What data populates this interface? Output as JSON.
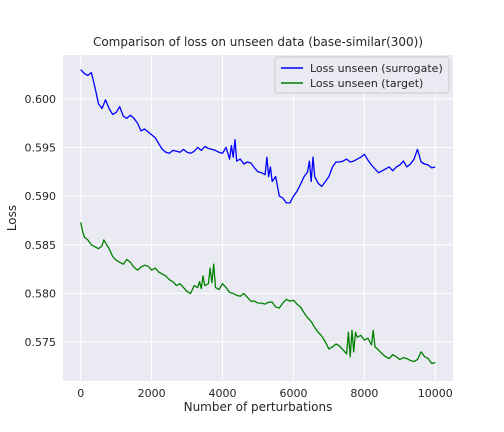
{
  "chart_data": {
    "type": "line",
    "title": "Comparison of loss on unseen data (base-similar(300))",
    "xlabel": "Number of perturbations",
    "ylabel": "Loss",
    "xlim": [
      -500,
      10500
    ],
    "ylim": [
      0.571,
      0.6045
    ],
    "xticks": [
      0,
      2000,
      4000,
      6000,
      8000,
      10000
    ],
    "xtick_labels": [
      "0",
      "2000",
      "4000",
      "6000",
      "8000",
      "10000"
    ],
    "yticks": [
      0.575,
      0.58,
      0.585,
      0.59,
      0.595,
      0.6
    ],
    "ytick_labels": [
      "0.575",
      "0.580",
      "0.585",
      "0.590",
      "0.595",
      "0.600"
    ],
    "grid": true,
    "background": "#eaeaf2",
    "legend_position": "top-right",
    "series": [
      {
        "name": "Loss unseen (surrogate)",
        "color": "#0000ff",
        "x": [
          0,
          100,
          200,
          300,
          400,
          500,
          600,
          700,
          800,
          900,
          1000,
          1100,
          1200,
          1300,
          1400,
          1500,
          1600,
          1700,
          1800,
          1900,
          2000,
          2100,
          2200,
          2300,
          2400,
          2500,
          2600,
          2700,
          2800,
          2900,
          3000,
          3100,
          3200,
          3300,
          3400,
          3500,
          3600,
          3700,
          3800,
          3900,
          4000,
          4100,
          4200,
          4250,
          4300,
          4350,
          4400,
          4500,
          4600,
          4700,
          4800,
          4900,
          5000,
          5100,
          5200,
          5250,
          5300,
          5350,
          5400,
          5500,
          5600,
          5700,
          5800,
          5900,
          6000,
          6100,
          6200,
          6300,
          6400,
          6450,
          6500,
          6550,
          6600,
          6700,
          6800,
          6900,
          7000,
          7100,
          7200,
          7300,
          7400,
          7500,
          7600,
          7700,
          7800,
          7900,
          8000,
          8100,
          8200,
          8300,
          8400,
          8500,
          8600,
          8700,
          8800,
          8900,
          9000,
          9100,
          9200,
          9300,
          9400,
          9500,
          9600,
          9700,
          9800,
          9900,
          10000
        ],
        "y": [
          0.603,
          0.6026,
          0.6024,
          0.6027,
          0.6012,
          0.5995,
          0.599,
          0.5999,
          0.599,
          0.5984,
          0.5986,
          0.5992,
          0.5982,
          0.598,
          0.5983,
          0.598,
          0.5975,
          0.5967,
          0.5969,
          0.5966,
          0.5963,
          0.596,
          0.5954,
          0.5948,
          0.5945,
          0.5944,
          0.5947,
          0.5946,
          0.5945,
          0.5948,
          0.5945,
          0.5944,
          0.5946,
          0.595,
          0.5947,
          0.5951,
          0.5949,
          0.5948,
          0.5947,
          0.5945,
          0.5944,
          0.595,
          0.5938,
          0.5952,
          0.594,
          0.5958,
          0.5936,
          0.5938,
          0.5933,
          0.5935,
          0.5934,
          0.5929,
          0.5925,
          0.5924,
          0.5922,
          0.594,
          0.592,
          0.593,
          0.5915,
          0.592,
          0.59,
          0.5898,
          0.5893,
          0.5893,
          0.59,
          0.5905,
          0.5912,
          0.592,
          0.5925,
          0.5936,
          0.5915,
          0.594,
          0.592,
          0.5913,
          0.591,
          0.5915,
          0.592,
          0.593,
          0.5935,
          0.5935,
          0.5936,
          0.5938,
          0.5935,
          0.5936,
          0.5938,
          0.594,
          0.5943,
          0.5937,
          0.5932,
          0.5928,
          0.5924,
          0.5926,
          0.5928,
          0.593,
          0.5926,
          0.593,
          0.5932,
          0.5936,
          0.593,
          0.5933,
          0.5938,
          0.5948,
          0.5935,
          0.5933,
          0.5932,
          0.5929,
          0.593
        ]
      },
      {
        "name": "Loss unseen (target)",
        "color": "#008000",
        "x": [
          0,
          50,
          100,
          200,
          300,
          400,
          500,
          600,
          650,
          700,
          800,
          900,
          1000,
          1100,
          1200,
          1300,
          1400,
          1500,
          1600,
          1700,
          1800,
          1900,
          2000,
          2100,
          2200,
          2300,
          2400,
          2500,
          2600,
          2700,
          2800,
          2900,
          3000,
          3100,
          3200,
          3300,
          3350,
          3400,
          3450,
          3500,
          3600,
          3650,
          3700,
          3750,
          3800,
          3900,
          4000,
          4100,
          4200,
          4300,
          4400,
          4500,
          4600,
          4700,
          4800,
          4900,
          5000,
          5100,
          5200,
          5300,
          5400,
          5500,
          5600,
          5700,
          5800,
          5900,
          6000,
          6100,
          6200,
          6300,
          6400,
          6500,
          6600,
          6700,
          6800,
          6900,
          7000,
          7100,
          7200,
          7300,
          7400,
          7500,
          7550,
          7600,
          7650,
          7700,
          7750,
          7800,
          7900,
          8000,
          8100,
          8200,
          8250,
          8300,
          8400,
          8500,
          8600,
          8700,
          8800,
          8900,
          9000,
          9100,
          9200,
          9300,
          9400,
          9500,
          9600,
          9700,
          9800,
          9900,
          10000
        ],
        "y": [
          0.5873,
          0.5864,
          0.5858,
          0.5855,
          0.585,
          0.5848,
          0.5846,
          0.5849,
          0.5855,
          0.5852,
          0.5846,
          0.5838,
          0.5834,
          0.5832,
          0.583,
          0.5835,
          0.5832,
          0.5827,
          0.5824,
          0.5827,
          0.5829,
          0.5828,
          0.5824,
          0.5826,
          0.5822,
          0.582,
          0.5818,
          0.5814,
          0.5812,
          0.5808,
          0.581,
          0.5806,
          0.5802,
          0.58,
          0.5808,
          0.5806,
          0.5812,
          0.5805,
          0.5818,
          0.5808,
          0.581,
          0.5826,
          0.5811,
          0.583,
          0.5806,
          0.5804,
          0.581,
          0.5806,
          0.5801,
          0.58,
          0.5798,
          0.5797,
          0.58,
          0.5796,
          0.5792,
          0.5792,
          0.579,
          0.579,
          0.5789,
          0.5791,
          0.5791,
          0.5786,
          0.5785,
          0.579,
          0.5794,
          0.5792,
          0.5793,
          0.5789,
          0.5786,
          0.578,
          0.5775,
          0.5771,
          0.5765,
          0.576,
          0.5756,
          0.575,
          0.5743,
          0.5745,
          0.5748,
          0.5746,
          0.5742,
          0.5738,
          0.576,
          0.5735,
          0.5762,
          0.574,
          0.576,
          0.5755,
          0.5757,
          0.5752,
          0.5754,
          0.5747,
          0.5762,
          0.5745,
          0.5742,
          0.5738,
          0.5735,
          0.5733,
          0.5737,
          0.5735,
          0.5732,
          0.5734,
          0.5733,
          0.5731,
          0.573,
          0.5732,
          0.574,
          0.5735,
          0.5733,
          0.5728,
          0.5729
        ]
      }
    ]
  }
}
